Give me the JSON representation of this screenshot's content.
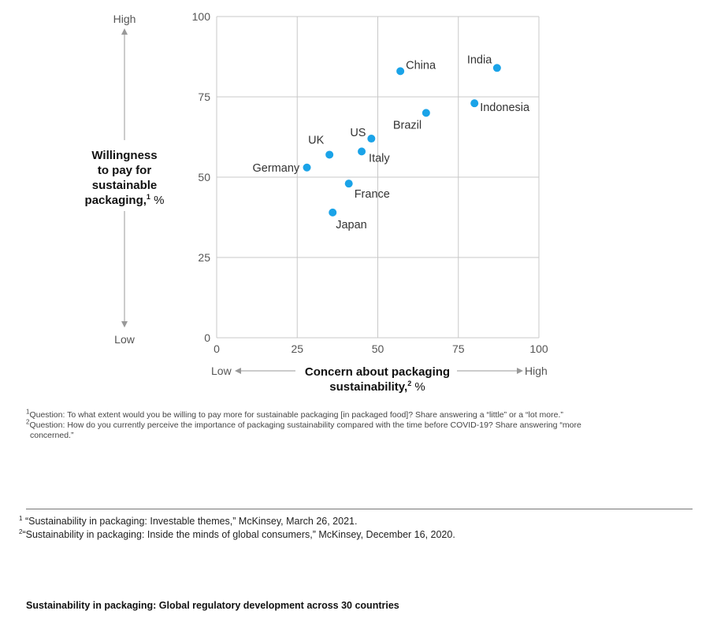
{
  "chart_data": {
    "type": "scatter",
    "xlabel": "Concern about packaging sustainability,",
    "xlabel_sup": "2",
    "xlabel_unit": "%",
    "ylabel": "Willingness to pay for sustainable packaging,",
    "ylabel_sup": "1",
    "ylabel_unit": "%",
    "xlim": [
      0,
      100
    ],
    "ylim": [
      0,
      100
    ],
    "xticks": [
      0,
      25,
      50,
      75,
      100
    ],
    "yticks": [
      0,
      25,
      50,
      75,
      100
    ],
    "x_low_label": "Low",
    "x_high_label": "High",
    "y_low_label": "Low",
    "y_high_label": "High",
    "grid": true,
    "point_color": "#1AA3E8",
    "points": [
      {
        "label": "India",
        "x": 87,
        "y": 84
      },
      {
        "label": "China",
        "x": 57,
        "y": 83
      },
      {
        "label": "Indonesia",
        "x": 80,
        "y": 73
      },
      {
        "label": "Brazil",
        "x": 65,
        "y": 70
      },
      {
        "label": "US",
        "x": 48,
        "y": 62
      },
      {
        "label": "Italy",
        "x": 45,
        "y": 58
      },
      {
        "label": "UK",
        "x": 35,
        "y": 57
      },
      {
        "label": "Germany",
        "x": 28,
        "y": 53
      },
      {
        "label": "France",
        "x": 41,
        "y": 48
      },
      {
        "label": "Japan",
        "x": 36,
        "y": 39
      }
    ]
  },
  "notes": {
    "q1_marker": "1",
    "q1": "Question: To what extent would you be willing to pay more for sustainable packaging [in packaged food]? Share answering a “little” or a “lot more.”",
    "q2_marker": "2",
    "q2_line1": "Question: How do you currently perceive the importance of packaging sustainability compared with the time before COVID-19? Share answering “more",
    "q2_line2": "concerned.”"
  },
  "footnotes": {
    "f1_marker": "1",
    "f1": "“Sustainability in packaging: Investable themes,” McKinsey, March 26, 2021.",
    "f2_marker": "2",
    "f2": "“Sustainability in packaging: Inside the minds of global consumers,” McKinsey, December 16, 2020."
  },
  "next_section_title": "Sustainability in packaging: Global regulatory development across 30 countries"
}
